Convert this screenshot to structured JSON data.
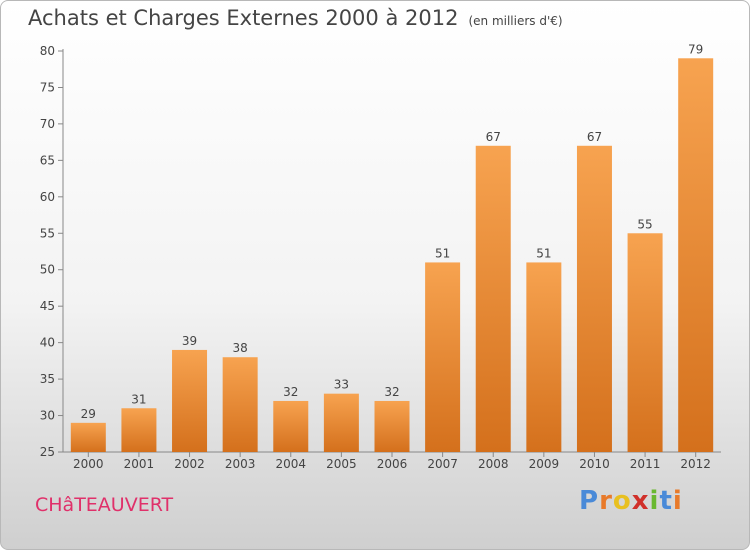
{
  "chart_data": {
    "type": "bar",
    "title": "Achats et Charges Externes 2000 à 2012",
    "subtitle": "(en milliers d'€)",
    "categories": [
      "2000",
      "2001",
      "2002",
      "2003",
      "2004",
      "2005",
      "2006",
      "2007",
      "2008",
      "2009",
      "2010",
      "2011",
      "2012"
    ],
    "values": [
      29,
      31,
      39,
      38,
      32,
      33,
      32,
      51,
      67,
      51,
      67,
      55,
      79
    ],
    "ylim": [
      25,
      80
    ],
    "yticks": [
      25,
      30,
      35,
      40,
      45,
      50,
      55,
      60,
      65,
      70,
      75,
      80
    ],
    "xlabel": "",
    "ylabel": "",
    "grid": false,
    "bar_color_top": "#f7a350",
    "bar_color_bottom": "#d4701c"
  },
  "footer": {
    "place": "CHâTEAUVERT",
    "logo_letters": [
      "P",
      "r",
      "o",
      "x",
      "i",
      "t",
      "i"
    ],
    "logo_colors": [
      "#4a8ad8",
      "#e87a2a",
      "#e8c020",
      "#d0302a",
      "#6ab830",
      "#4a8ad8",
      "#e87a2a"
    ]
  }
}
